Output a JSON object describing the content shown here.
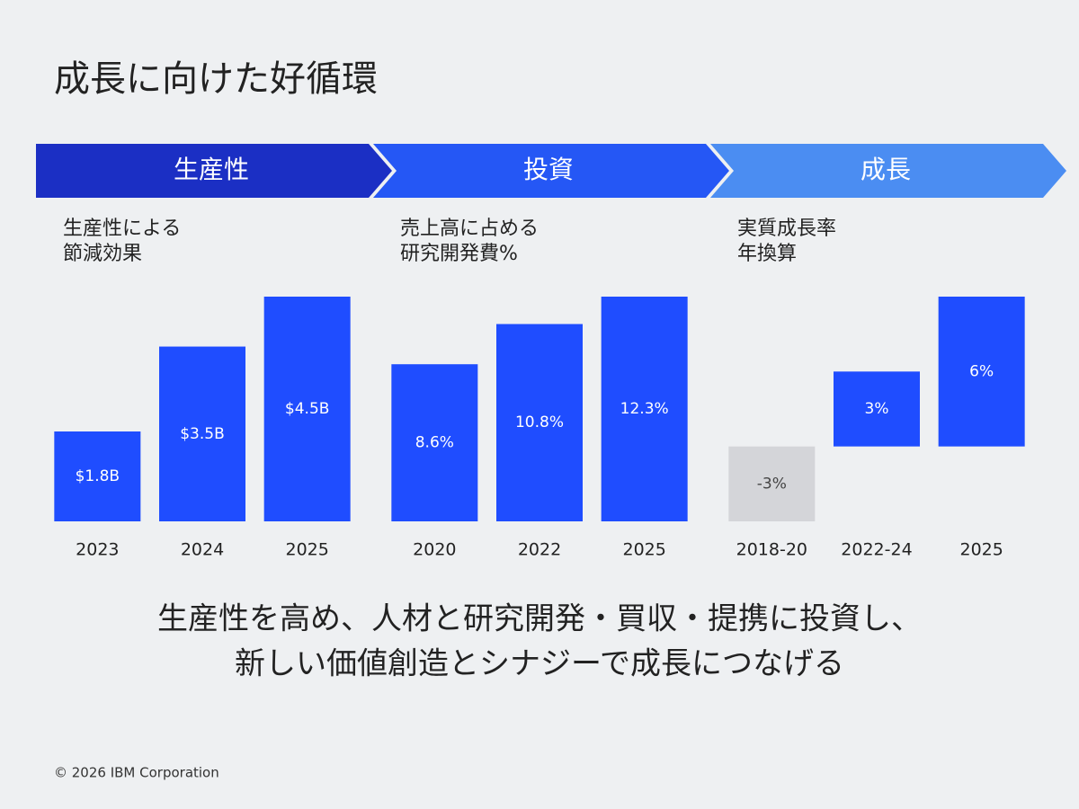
{
  "title": "成長に向けた好循環",
  "chart_data": [
    {
      "type": "bar",
      "stage": "生産性",
      "stage_color": "#1b2fc4",
      "subtitle": [
        "生産性による",
        "節減効果"
      ],
      "categories": [
        "2023",
        "2024",
        "2025"
      ],
      "values": [
        1.8,
        3.5,
        4.5
      ],
      "value_labels": [
        "$1.8B",
        "$3.5B",
        "$4.5B"
      ],
      "color": "#1f4dff"
    },
    {
      "type": "bar",
      "stage": "投資",
      "stage_color": "#2557f5",
      "subtitle": [
        "売上高に占める",
        "研究開発費%"
      ],
      "categories": [
        "2020",
        "2022",
        "2025"
      ],
      "values": [
        8.6,
        10.8,
        12.3
      ],
      "value_labels": [
        "8.6%",
        "10.8%",
        "12.3%"
      ],
      "color": "#1f4dff"
    },
    {
      "type": "bar",
      "stage": "成長",
      "stage_color": "#4b8df2",
      "subtitle": [
        "実質成長率",
        "年換算"
      ],
      "categories": [
        "2018-20",
        "2022-24",
        "2025"
      ],
      "values": [
        -3,
        3,
        6
      ],
      "value_labels": [
        "-3%",
        "3%",
        "6%"
      ],
      "color": "#1f4dff",
      "negative_color": "#d4d5d9"
    }
  ],
  "message": [
    "生産性を高め、人材と研究開発・買収・提携に投資し、",
    "新しい価値創造とシナジーで成長につなげる"
  ],
  "copyright": "© 2026 IBM Corporation"
}
